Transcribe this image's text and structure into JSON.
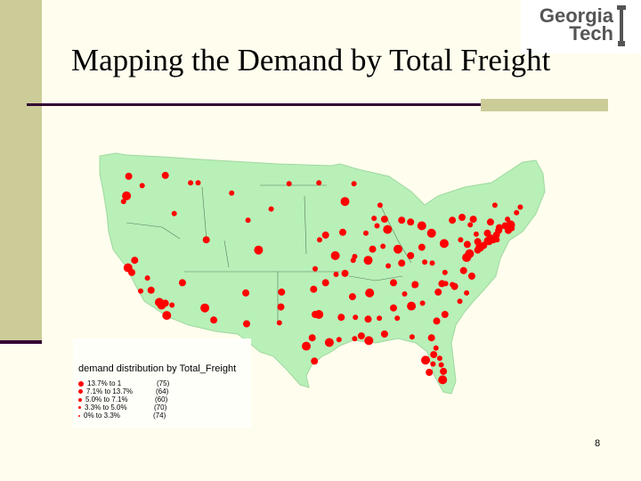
{
  "slide": {
    "title": "Mapping the Demand by Total Freight",
    "page_number": "8",
    "colors": {
      "background": "#fffeee",
      "sidebar": "#cccc99",
      "rule": "#330033",
      "land": "#b8f0b8",
      "dot": "#ff0000"
    }
  },
  "logo": {
    "line1": "Georgia",
    "line2": "Tech"
  },
  "legend": {
    "title": "demand distribution by Total_Freight",
    "rows": [
      {
        "range": "13.7% to  1",
        "count": "(75)"
      },
      {
        "range": "7.1% to 13.7%",
        "count": "(64)"
      },
      {
        "range": "5.0% to  7.1%",
        "count": "(60)"
      },
      {
        "range": "3.3% to  5.0%",
        "count": "(70)"
      },
      {
        "range": "0%   to  3.3%",
        "count": "(74)"
      }
    ]
  },
  "map_markers": [
    [
      -122.3,
      47.6,
      4
    ],
    [
      -122.6,
      45.5,
      5
    ],
    [
      -123.0,
      44.9,
      3
    ],
    [
      -122.4,
      37.8,
      5
    ],
    [
      -121.9,
      37.3,
      4
    ],
    [
      -121.5,
      38.6,
      4
    ],
    [
      -119.8,
      36.7,
      3
    ],
    [
      -118.2,
      34.1,
      5
    ],
    [
      -117.9,
      33.8,
      5
    ],
    [
      -117.2,
      32.7,
      5
    ],
    [
      -117.4,
      34.0,
      4
    ],
    [
      -115.1,
      36.2,
      4
    ],
    [
      -112.1,
      33.5,
      5
    ],
    [
      -110.9,
      32.2,
      4
    ],
    [
      -106.6,
      35.1,
      4
    ],
    [
      -106.5,
      31.8,
      4
    ],
    [
      -104.9,
      39.7,
      5
    ],
    [
      -111.9,
      40.8,
      4
    ],
    [
      -116.2,
      43.6,
      3
    ],
    [
      -113.0,
      46.9,
      3
    ],
    [
      -96.8,
      32.8,
      5
    ],
    [
      -97.3,
      32.8,
      4
    ],
    [
      -95.4,
      29.8,
      5
    ],
    [
      -98.5,
      29.4,
      5
    ],
    [
      -97.7,
      30.3,
      4
    ],
    [
      -94.1,
      30.1,
      3
    ],
    [
      -97.5,
      35.5,
      4
    ],
    [
      -95.9,
      36.2,
      4
    ],
    [
      -94.6,
      39.1,
      5
    ],
    [
      -97.3,
      37.7,
      3
    ],
    [
      -95.9,
      41.3,
      4
    ],
    [
      -96.7,
      40.8,
      3
    ],
    [
      -93.3,
      44.9,
      5
    ],
    [
      -93.6,
      41.6,
      4
    ],
    [
      -90.2,
      38.6,
      5
    ],
    [
      -87.6,
      41.9,
      5
    ],
    [
      -88.0,
      43.0,
      4
    ],
    [
      -86.2,
      39.8,
      5
    ],
    [
      -84.5,
      39.1,
      4
    ],
    [
      -83.0,
      40.0,
      4
    ],
    [
      -81.7,
      41.5,
      5
    ],
    [
      -83.0,
      42.3,
      5
    ],
    [
      -80.0,
      40.4,
      5
    ],
    [
      -85.7,
      38.3,
      4
    ],
    [
      -86.8,
      36.2,
      4
    ],
    [
      -90.0,
      35.1,
      5
    ],
    [
      -86.8,
      33.5,
      4
    ],
    [
      -84.4,
      33.7,
      5
    ],
    [
      -81.7,
      30.3,
      4
    ],
    [
      -82.5,
      27.9,
      5
    ],
    [
      -81.4,
      28.5,
      4
    ],
    [
      -80.2,
      25.8,
      5
    ],
    [
      -80.1,
      26.7,
      4
    ],
    [
      -90.1,
      30.0,
      5
    ],
    [
      -91.1,
      30.5,
      4
    ],
    [
      -92.3,
      34.7,
      4
    ],
    [
      -80.8,
      35.2,
      4
    ],
    [
      -78.6,
      35.8,
      4
    ],
    [
      -77.4,
      37.5,
      4
    ],
    [
      -76.3,
      36.9,
      4
    ],
    [
      -77.0,
      38.9,
      5
    ],
    [
      -76.6,
      39.3,
      5
    ],
    [
      -75.2,
      40.0,
      5
    ],
    [
      -74.0,
      40.7,
      5
    ],
    [
      -74.2,
      40.7,
      4
    ],
    [
      -73.0,
      41.3,
      4
    ],
    [
      -71.1,
      42.4,
      5
    ],
    [
      -71.4,
      41.8,
      4
    ],
    [
      -72.7,
      41.8,
      4
    ],
    [
      -73.8,
      42.7,
      4
    ],
    [
      -76.1,
      43.0,
      4
    ],
    [
      -77.6,
      43.2,
      4
    ],
    [
      -78.9,
      42.9,
      4
    ],
    [
      -79.9,
      32.8,
      4
    ],
    [
      -81.0,
      32.1,
      4
    ],
    [
      -84.3,
      30.4,
      3
    ],
    [
      -88.0,
      30.7,
      4
    ],
    [
      -85.3,
      35.0,
      3
    ],
    [
      -83.9,
      36.0,
      4
    ],
    [
      -82.6,
      38.4,
      3
    ],
    [
      -84.5,
      42.7,
      4
    ],
    [
      -85.7,
      42.9,
      4
    ],
    [
      -89.4,
      43.1,
      3
    ],
    [
      -92.1,
      46.8,
      3
    ],
    [
      -96.8,
      46.9,
      3
    ],
    [
      -100.8,
      46.8,
      3
    ],
    [
      -103.2,
      44.1,
      3
    ],
    [
      -101.8,
      35.2,
      4
    ],
    [
      -101.9,
      33.6,
      4
    ],
    [
      -102.1,
      31.9,
      3
    ],
    [
      -97.4,
      27.8,
      4
    ],
    [
      -106.3,
      42.9,
      3
    ],
    [
      -108.5,
      45.8,
      3
    ],
    [
      -114.0,
      46.9,
      3
    ],
    [
      -117.4,
      47.7,
      4
    ],
    [
      -120.5,
      46.6,
      3
    ],
    [
      -119.3,
      35.4,
      4
    ],
    [
      -120.7,
      35.3,
      3
    ],
    [
      -116.5,
      33.8,
      3
    ],
    [
      -92.0,
      39.0,
      3
    ],
    [
      -89.6,
      39.8,
      4
    ],
    [
      -88.2,
      40.1,
      3
    ],
    [
      -87.5,
      38.0,
      3
    ],
    [
      -82.9,
      34.0,
      3
    ],
    [
      -77.9,
      34.2,
      3
    ],
    [
      -75.5,
      39.7,
      4
    ],
    [
      -74.7,
      40.2,
      4
    ],
    [
      -70.3,
      43.7,
      3
    ],
    [
      -72.6,
      42.1,
      4
    ],
    [
      -69.8,
      44.3,
      3
    ],
    [
      -71.5,
      43.0,
      3
    ],
    [
      -73.2,
      44.5,
      3
    ],
    [
      -88.6,
      44.5,
      3
    ],
    [
      -90.5,
      41.5,
      3
    ],
    [
      -94.5,
      37.1,
      3
    ],
    [
      -93.3,
      37.2,
      4
    ],
    [
      -92.2,
      38.6,
      3
    ],
    [
      -89.0,
      42.3,
      3
    ],
    [
      -86.3,
      32.4,
      3
    ],
    [
      -88.7,
      32.4,
      3
    ],
    [
      -90.2,
      32.3,
      4
    ],
    [
      -91.9,
      32.5,
      3
    ],
    [
      -93.8,
      32.5,
      4
    ],
    [
      -92.0,
      30.2,
      3
    ],
    [
      -81.5,
      27.5,
      3
    ],
    [
      -82.0,
      26.6,
      4
    ],
    [
      -80.4,
      27.4,
      3
    ],
    [
      -80.6,
      28.1,
      3
    ],
    [
      -81.1,
      29.2,
      3
    ],
    [
      -84.0,
      35.9,
      3
    ],
    [
      -81.6,
      38.3,
      3
    ],
    [
      -79.9,
      37.3,
      3
    ],
    [
      -80.3,
      36.1,
      4
    ],
    [
      -79.8,
      36.1,
      3
    ],
    [
      -78.9,
      36.0,
      3
    ],
    [
      -77.0,
      35.1,
      3
    ],
    [
      -76.8,
      39.0,
      4
    ],
    [
      -75.5,
      40.6,
      4
    ],
    [
      -76.9,
      40.3,
      4
    ],
    [
      -77.8,
      40.8,
      3
    ],
    [
      -75.7,
      41.4,
      3
    ],
    [
      -76.5,
      42.4,
      3
    ],
    [
      -74.2,
      41.5,
      4
    ],
    [
      -73.8,
      41.0,
      4
    ],
    [
      -73.4,
      40.8,
      4
    ],
    [
      -72.9,
      40.8,
      3
    ],
    [
      -71.8,
      42.3,
      4
    ],
    [
      -70.9,
      42.0,
      3
    ]
  ]
}
